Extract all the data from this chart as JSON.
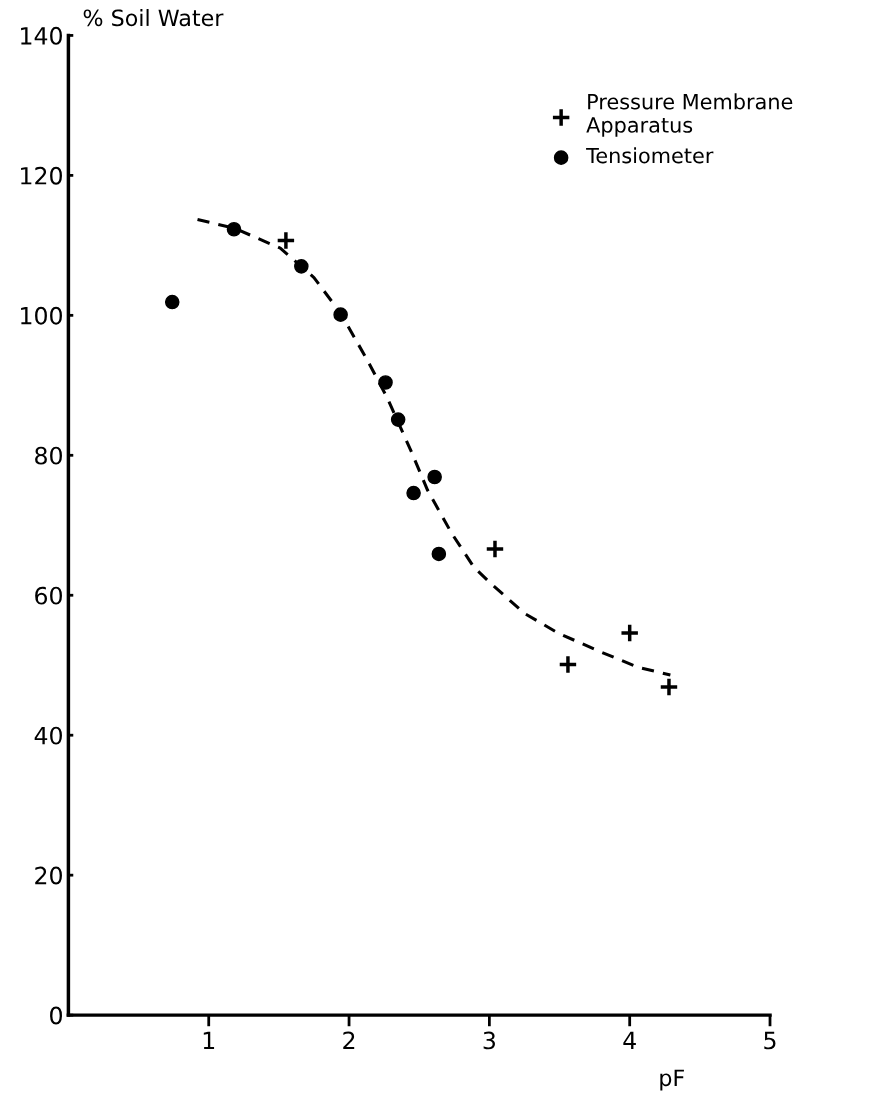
{
  "chart_data": {
    "type": "scatter",
    "ylabel": "% Soil Water",
    "xlabel": "pF",
    "xlim": [
      0,
      5
    ],
    "ylim": [
      0,
      140
    ],
    "xticks": [
      1,
      2,
      3,
      4,
      5
    ],
    "yticks": [
      0,
      20,
      40,
      60,
      80,
      100,
      120,
      140
    ],
    "grid": false,
    "legend": "top right",
    "series": [
      {
        "name": "Pressure Membrane\nApparatus",
        "color": "#000000",
        "marker": "cross",
        "x": [
          1.55,
          3.04,
          3.56,
          4.0,
          4.28
        ],
        "values": [
          110.7,
          66.6,
          50.1,
          54.6,
          46.9
        ]
      },
      {
        "name": "Tensiometer",
        "color": "#000000",
        "marker": "circle",
        "x": [
          0.74,
          1.18,
          1.66,
          1.94,
          2.26,
          2.35,
          2.61,
          2.46,
          2.64
        ],
        "values": [
          101.9,
          112.3,
          107.0,
          100.1,
          90.4,
          85.1,
          76.9,
          74.6,
          65.9
        ]
      },
      {
        "type": "line",
        "color": "#000000",
        "marker": "none",
        "line_style": "dashed",
        "x": [
          0.92,
          1.19,
          1.51,
          1.75,
          1.94,
          2.13,
          2.27,
          2.44,
          2.56,
          2.73,
          2.89,
          3.01,
          3.25,
          3.49,
          3.77,
          4.06,
          4.29
        ],
        "values": [
          113.7,
          112.4,
          109.6,
          105.4,
          100.3,
          93.6,
          88.3,
          80.7,
          75.0,
          68.9,
          64.0,
          61.7,
          57.4,
          54.6,
          52.1,
          49.7,
          48.6
        ]
      }
    ]
  }
}
